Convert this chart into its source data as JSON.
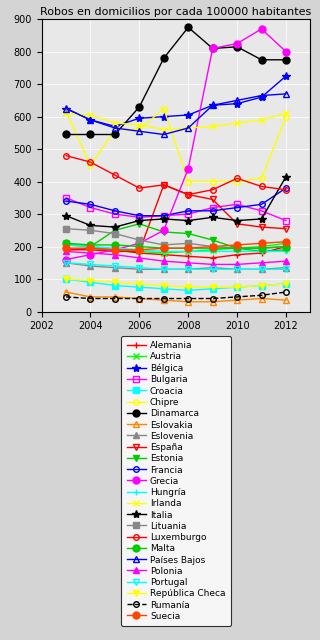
{
  "title": "Robos en domicilios por cada 100000 habitantes",
  "years": [
    2003,
    2004,
    2005,
    2006,
    2007,
    2008,
    2009,
    2010,
    2011,
    2012
  ],
  "country_styles": {
    "Alemania": {
      "color": "#ff0000",
      "marker": "+",
      "ms": 5,
      "mfc": "#ff0000",
      "mec": "#ff0000",
      "lw": 1,
      "ls": "-"
    },
    "Austria": {
      "color": "#00ff00",
      "marker": "x",
      "ms": 5,
      "mfc": "#00ff00",
      "mec": "#00ff00",
      "lw": 1,
      "ls": "-"
    },
    "Bélgica": {
      "color": "#0000ff",
      "marker": "*",
      "ms": 6,
      "mfc": "#0000ff",
      "mec": "#0000ff",
      "lw": 1,
      "ls": "-"
    },
    "Bulgaria": {
      "color": "#ff00ff",
      "marker": "s",
      "ms": 4,
      "mfc": "none",
      "mec": "#ff00ff",
      "lw": 1,
      "ls": "-"
    },
    "Croacia": {
      "color": "#00ffff",
      "marker": "s",
      "ms": 4,
      "mfc": "#00ffff",
      "mec": "#00ffff",
      "lw": 1,
      "ls": "-"
    },
    "Chipre": {
      "color": "#ffff00",
      "marker": "o",
      "ms": 4,
      "mfc": "none",
      "mec": "#ffff00",
      "lw": 1,
      "ls": "-"
    },
    "Dinamarca": {
      "color": "#000000",
      "marker": "o",
      "ms": 5,
      "mfc": "#000000",
      "mec": "#000000",
      "lw": 1,
      "ls": "-"
    },
    "Eslovakia": {
      "color": "#ff8800",
      "marker": "^",
      "ms": 4,
      "mfc": "none",
      "mec": "#ff8800",
      "lw": 1,
      "ls": "-"
    },
    "Eslovenia": {
      "color": "#888888",
      "marker": "^",
      "ms": 4,
      "mfc": "#888888",
      "mec": "#888888",
      "lw": 1,
      "ls": "-"
    },
    "España": {
      "color": "#ff0000",
      "marker": "v",
      "ms": 4,
      "mfc": "none",
      "mec": "#ff0000",
      "lw": 1,
      "ls": "-"
    },
    "Estonia": {
      "color": "#00cc00",
      "marker": "v",
      "ms": 4,
      "mfc": "#00cc00",
      "mec": "#00cc00",
      "lw": 1,
      "ls": "-"
    },
    "Francia": {
      "color": "#0000ff",
      "marker": "o",
      "ms": 4,
      "mfc": "none",
      "mec": "#0000ff",
      "lw": 1,
      "ls": "-"
    },
    "Grecia": {
      "color": "#ff00ff",
      "marker": "o",
      "ms": 5,
      "mfc": "#ff00ff",
      "mec": "#ff00ff",
      "lw": 1,
      "ls": "-"
    },
    "Hungría": {
      "color": "#00ffff",
      "marker": "+",
      "ms": 5,
      "mfc": "#00ffff",
      "mec": "#00ffff",
      "lw": 1,
      "ls": "-"
    },
    "Irlanda": {
      "color": "#ffff00",
      "marker": "x",
      "ms": 5,
      "mfc": "#ffff00",
      "mec": "#ffff00",
      "lw": 1,
      "ls": "-"
    },
    "Italia": {
      "color": "#000000",
      "marker": "*",
      "ms": 6,
      "mfc": "#000000",
      "mec": "#000000",
      "lw": 1,
      "ls": "-"
    },
    "Lituania": {
      "color": "#888888",
      "marker": "s",
      "ms": 4,
      "mfc": "#888888",
      "mec": "#888888",
      "lw": 1,
      "ls": "-"
    },
    "Luxemburgo": {
      "color": "#ff0000",
      "marker": "o",
      "ms": 4,
      "mfc": "none",
      "mec": "#ff0000",
      "lw": 1,
      "ls": "-"
    },
    "Malta": {
      "color": "#00cc00",
      "marker": "o",
      "ms": 5,
      "mfc": "#00cc00",
      "mec": "#00cc00",
      "lw": 1,
      "ls": "-"
    },
    "Países Bajos": {
      "color": "#0000ff",
      "marker": "^",
      "ms": 4,
      "mfc": "none",
      "mec": "#0000ff",
      "lw": 1,
      "ls": "-"
    },
    "Polonia": {
      "color": "#ff00ff",
      "marker": "^",
      "ms": 4,
      "mfc": "#ff00ff",
      "mec": "#ff00ff",
      "lw": 1,
      "ls": "-"
    },
    "Portugal": {
      "color": "#00ffff",
      "marker": "v",
      "ms": 4,
      "mfc": "none",
      "mec": "#00ffff",
      "lw": 1,
      "ls": "-"
    },
    "República Checa": {
      "color": "#ffff00",
      "marker": "v",
      "ms": 4,
      "mfc": "#ffff00",
      "mec": "#ffff00",
      "lw": 1,
      "ls": "-"
    },
    "Rumanía": {
      "color": "#000000",
      "marker": "o",
      "ms": 4,
      "mfc": "none",
      "mec": "#000000",
      "lw": 1,
      "ls": "--"
    },
    "Suecia": {
      "color": "#ff4400",
      "marker": "o",
      "ms": 5,
      "mfc": "#ff4400",
      "mec": "#ff4400",
      "lw": 1,
      "ls": "-"
    }
  },
  "series": {
    "Alemania": [
      190,
      195,
      190,
      180,
      175,
      170,
      165,
      175,
      180,
      200
    ],
    "Austria": [
      210,
      200,
      190,
      185,
      180,
      185,
      190,
      195,
      200,
      210
    ],
    "Bélgica": [
      625,
      590,
      570,
      595,
      600,
      605,
      635,
      640,
      660,
      725
    ],
    "Bulgaria": [
      350,
      320,
      300,
      290,
      295,
      300,
      320,
      330,
      310,
      280
    ],
    "Croacia": [
      100,
      90,
      80,
      75,
      70,
      65,
      70,
      75,
      80,
      85
    ],
    "Chipre": [
      615,
      450,
      560,
      560,
      625,
      400,
      400,
      400,
      410,
      600
    ],
    "Dinamarca": [
      545,
      545,
      545,
      630,
      780,
      875,
      810,
      815,
      775,
      775
    ],
    "Eslovakia": [
      60,
      45,
      45,
      40,
      35,
      30,
      30,
      35,
      40,
      35
    ],
    "Eslovenia": [
      150,
      140,
      135,
      130,
      130,
      130,
      135,
      130,
      130,
      135
    ],
    "España": [
      190,
      190,
      185,
      185,
      390,
      360,
      345,
      270,
      260,
      255
    ],
    "Estonia": [
      205,
      200,
      250,
      270,
      245,
      240,
      220,
      195,
      185,
      190
    ],
    "Francia": [
      340,
      330,
      310,
      295,
      295,
      310,
      310,
      320,
      330,
      380
    ],
    "Grecia": [
      160,
      175,
      190,
      210,
      250,
      440,
      810,
      825,
      870,
      800
    ],
    "Hungría": [
      205,
      200,
      195,
      190,
      185,
      185,
      185,
      185,
      185,
      185
    ],
    "Irlanda": [
      610,
      605,
      580,
      575,
      560,
      565,
      570,
      580,
      590,
      610
    ],
    "Italia": [
      295,
      265,
      260,
      280,
      285,
      280,
      290,
      280,
      285,
      415
    ],
    "Lituania": [
      255,
      250,
      240,
      220,
      205,
      210,
      200,
      195,
      195,
      200
    ],
    "Luxemburgo": [
      480,
      460,
      420,
      380,
      390,
      360,
      375,
      410,
      385,
      375
    ],
    "Malta": [
      210,
      205,
      205,
      200,
      195,
      195,
      195,
      195,
      195,
      200
    ],
    "Países Bajos": [
      625,
      590,
      565,
      555,
      545,
      565,
      635,
      650,
      665,
      670
    ],
    "Polonia": [
      185,
      180,
      175,
      165,
      155,
      150,
      145,
      145,
      150,
      155
    ],
    "Portugal": [
      150,
      145,
      140,
      135,
      130,
      130,
      130,
      130,
      130,
      130
    ],
    "República Checa": [
      100,
      95,
      90,
      85,
      80,
      75,
      75,
      75,
      80,
      85
    ],
    "Rumanía": [
      45,
      40,
      40,
      40,
      40,
      40,
      40,
      45,
      50,
      60
    ],
    "Suecia": [
      195,
      195,
      190,
      190,
      195,
      195,
      200,
      205,
      210,
      215
    ]
  },
  "xlim": [
    2002,
    2013
  ],
  "ylim": [
    0,
    900
  ],
  "yticks": [
    0,
    100,
    200,
    300,
    400,
    500,
    600,
    700,
    800,
    900
  ],
  "xticks": [
    2002,
    2004,
    2006,
    2008,
    2010,
    2012
  ],
  "bg_color": "#d4d4d4",
  "plot_bg_color": "#e8e8e8",
  "title_fontsize": 8
}
